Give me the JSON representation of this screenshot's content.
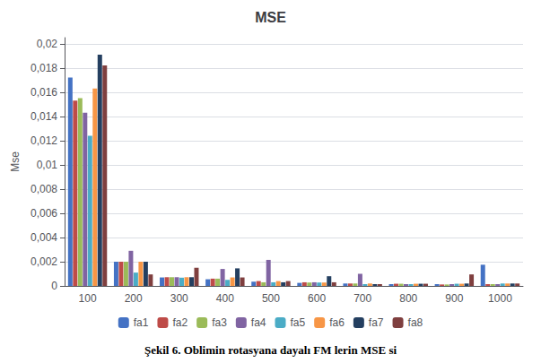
{
  "chart_data": {
    "type": "bar",
    "title": "MSE",
    "ylabel": "Mse",
    "caption": "Şekil 6. Oblimin rotasyana dayalı FM lerin MSE si",
    "categories": [
      "100",
      "200",
      "300",
      "400",
      "500",
      "600",
      "700",
      "800",
      "900",
      "1000"
    ],
    "series": [
      {
        "name": "fa1",
        "color": "#4472C4",
        "values": [
          0.0172,
          0.002,
          0.0007,
          0.00055,
          0.00035,
          0.00025,
          0.0002,
          0.00015,
          0.00015,
          0.00175
        ]
      },
      {
        "name": "fa2",
        "color": "#BE4B48",
        "values": [
          0.0153,
          0.002,
          0.00072,
          0.0006,
          0.0004,
          0.0003,
          0.0002,
          0.00018,
          0.00012,
          0.00015
        ]
      },
      {
        "name": "fa3",
        "color": "#9BBB59",
        "values": [
          0.0155,
          0.002,
          0.00072,
          0.0006,
          0.0003,
          0.00028,
          0.0002,
          0.00018,
          0.00012,
          0.00015
        ]
      },
      {
        "name": "fa4",
        "color": "#8064A2",
        "values": [
          0.0143,
          0.0029,
          0.00072,
          0.0014,
          0.00215,
          0.0003,
          0.001,
          0.00015,
          0.00015,
          0.00015
        ]
      },
      {
        "name": "fa5",
        "color": "#4BACC6",
        "values": [
          0.0124,
          0.0011,
          0.00068,
          0.0005,
          0.0003,
          0.00028,
          0.00015,
          0.00015,
          0.00018,
          0.0002
        ]
      },
      {
        "name": "fa6",
        "color": "#F79646",
        "values": [
          0.0163,
          0.002,
          0.00072,
          0.0007,
          0.0004,
          0.00028,
          0.0002,
          0.00018,
          0.00018,
          0.0002
        ]
      },
      {
        "name": "fa7",
        "color": "#243F60",
        "values": [
          0.0191,
          0.002,
          0.00072,
          0.00145,
          0.0003,
          0.0008,
          0.00015,
          0.00018,
          0.0002,
          0.0002
        ]
      },
      {
        "name": "fa8",
        "color": "#7F3F3F",
        "values": [
          0.0182,
          0.00095,
          0.0015,
          0.0007,
          0.0004,
          0.0003,
          0.00015,
          0.00018,
          0.00095,
          0.0002
        ]
      }
    ],
    "ylim": [
      0,
      0.0205
    ],
    "yticks": [
      0,
      {
        "value": 0.002,
        "label": "0,002"
      },
      {
        "value": 0.004,
        "label": "0,004"
      },
      {
        "value": 0.006,
        "label": "0,006"
      },
      {
        "value": 0.008,
        "label": "0,008"
      },
      {
        "value": 0.01,
        "label": "0,01"
      },
      {
        "value": 0.012,
        "label": "0,012"
      },
      {
        "value": 0.014,
        "label": "0,014"
      },
      {
        "value": 0.016,
        "label": "0,016"
      },
      {
        "value": 0.018,
        "label": "0,018"
      },
      {
        "value": 0.02,
        "label": "0,02"
      }
    ],
    "grid": true,
    "legend": "bottom"
  }
}
